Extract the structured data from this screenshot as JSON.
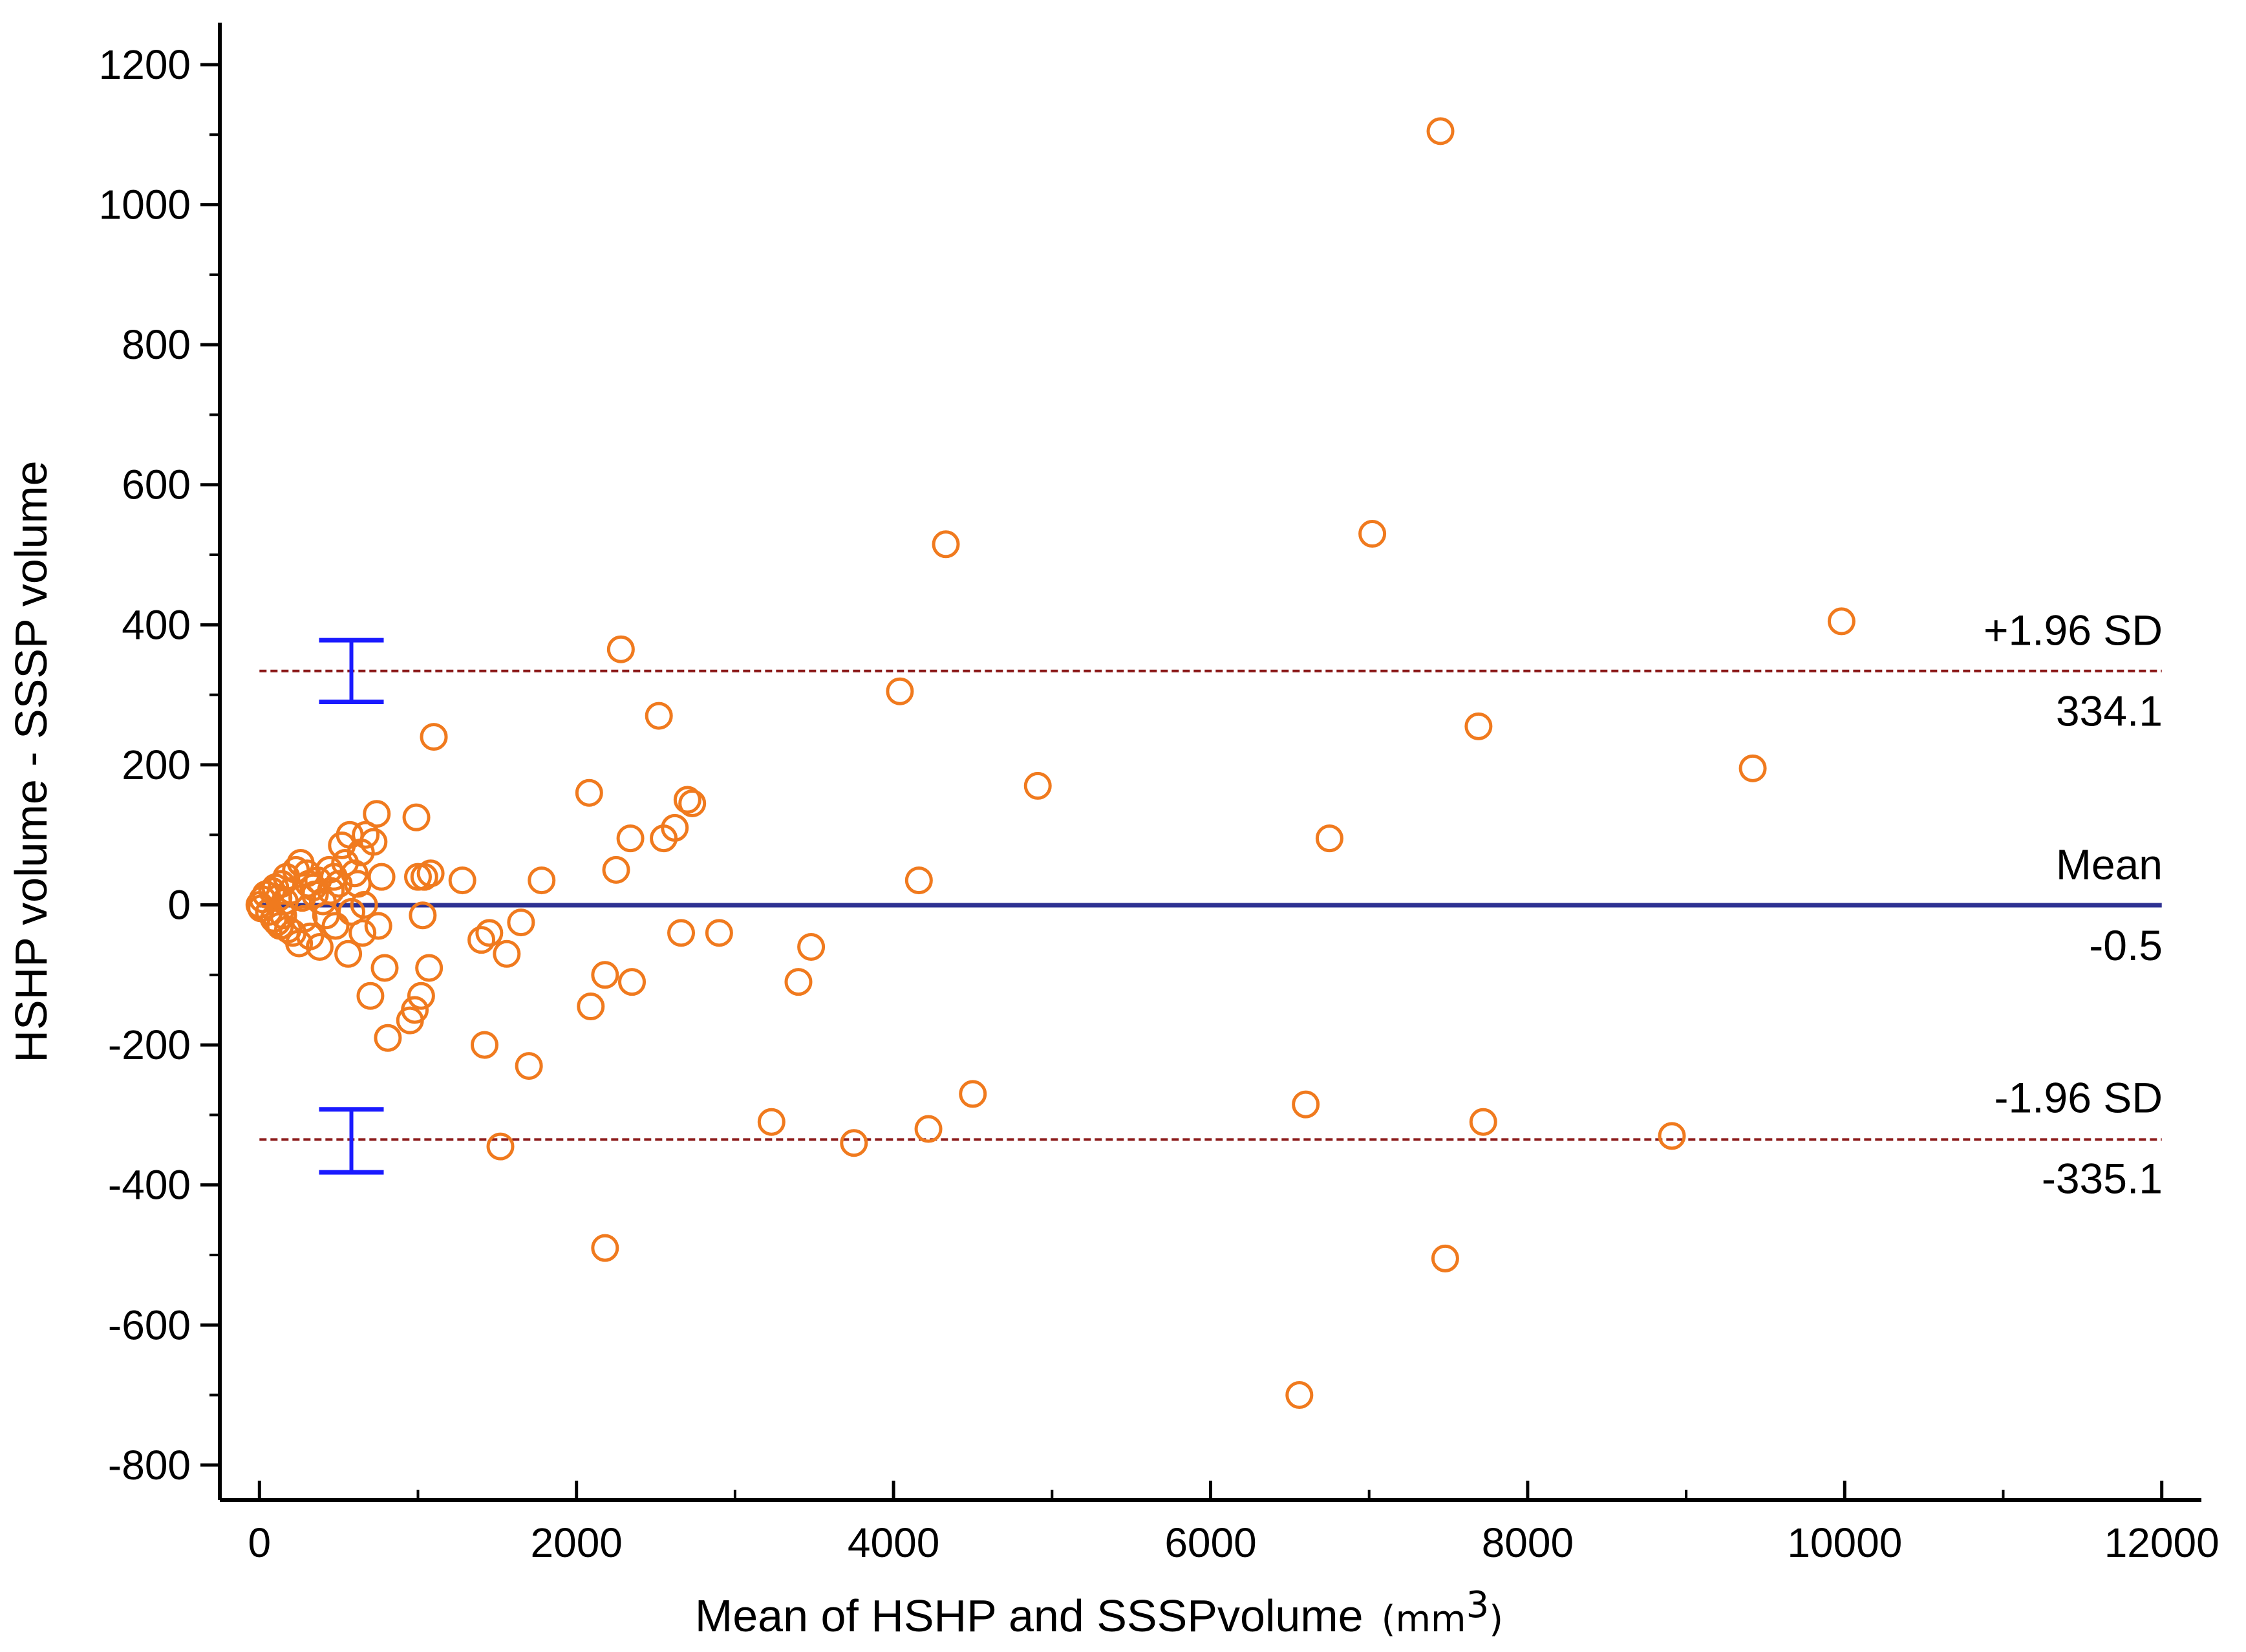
{
  "chart_data": {
    "type": "scatter",
    "title": "",
    "xlabel": "Mean of HSHP and SSSPvolume",
    "xlabel_unit": "mm",
    "xlabel_unit_sup": "3",
    "ylabel": "HSHP volume - SSSP volume",
    "xlim": [
      -250,
      12250
    ],
    "ylim": [
      -850,
      1260
    ],
    "xticks": [
      0,
      2000,
      4000,
      6000,
      8000,
      10000,
      12000
    ],
    "xtick_labels": [
      "0",
      "2000",
      "4000",
      "6000",
      "8000",
      "10000",
      "12000"
    ],
    "xminor": [
      1000,
      3000,
      5000,
      7000,
      9000,
      11000
    ],
    "yticks": [
      -800,
      -600,
      -400,
      -200,
      0,
      200,
      400,
      600,
      800,
      1000,
      1200
    ],
    "ytick_labels": [
      "-800",
      "-600",
      "-400",
      "-200",
      "0",
      "200",
      "400",
      "600",
      "800",
      "1000",
      "1200"
    ],
    "yminor": [
      -700,
      -500,
      -300,
      -100,
      100,
      300,
      500,
      700,
      900,
      1100
    ],
    "mean_line": {
      "value": -0.5,
      "label": "Mean",
      "value_label": "-0.5",
      "color": "#2e3192"
    },
    "upper_loa": {
      "value": 334.1,
      "label": "+1.96 SD",
      "value_label": "334.1",
      "color": "#8b1a1a"
    },
    "lower_loa": {
      "value": -335.1,
      "label": "-1.96 SD",
      "value_label": "-335.1",
      "color": "#8b1a1a"
    },
    "ci_bars": [
      {
        "x": 580,
        "low": 290,
        "high": 378
      },
      {
        "x": 580,
        "low": -382,
        "high": -292
      }
    ],
    "ci_color": "#1a1aff",
    "point_color": "#f07a1e",
    "points": [
      [
        0,
        0
      ],
      [
        10,
        -5
      ],
      [
        20,
        8
      ],
      [
        40,
        15
      ],
      [
        60,
        -10
      ],
      [
        80,
        20
      ],
      [
        90,
        -20
      ],
      [
        100,
        25
      ],
      [
        110,
        -25
      ],
      [
        120,
        10
      ],
      [
        130,
        -30
      ],
      [
        140,
        30
      ],
      [
        150,
        -15
      ],
      [
        160,
        5
      ],
      [
        170,
        40
      ],
      [
        180,
        -35
      ],
      [
        200,
        20
      ],
      [
        210,
        -40
      ],
      [
        230,
        50
      ],
      [
        250,
        -55
      ],
      [
        260,
        60
      ],
      [
        270,
        10
      ],
      [
        280,
        -20
      ],
      [
        300,
        45
      ],
      [
        310,
        30
      ],
      [
        320,
        -45
      ],
      [
        340,
        25
      ],
      [
        350,
        15
      ],
      [
        370,
        35
      ],
      [
        380,
        -60
      ],
      [
        400,
        5
      ],
      [
        420,
        -15
      ],
      [
        440,
        50
      ],
      [
        450,
        20
      ],
      [
        470,
        40
      ],
      [
        480,
        -30
      ],
      [
        500,
        30
      ],
      [
        520,
        85
      ],
      [
        540,
        60
      ],
      [
        560,
        -70
      ],
      [
        570,
        100
      ],
      [
        580,
        -10
      ],
      [
        600,
        45
      ],
      [
        620,
        30
      ],
      [
        640,
        75
      ],
      [
        650,
        -40
      ],
      [
        660,
        0
      ],
      [
        670,
        100
      ],
      [
        700,
        -130
      ],
      [
        720,
        90
      ],
      [
        740,
        130
      ],
      [
        750,
        -30
      ],
      [
        770,
        40
      ],
      [
        790,
        -90
      ],
      [
        810,
        -190
      ],
      [
        950,
        -165
      ],
      [
        980,
        -150
      ],
      [
        990,
        125
      ],
      [
        1000,
        40
      ],
      [
        1020,
        -130
      ],
      [
        1030,
        -15
      ],
      [
        1040,
        40
      ],
      [
        1070,
        -90
      ],
      [
        1080,
        45
      ],
      [
        1100,
        240
      ],
      [
        1280,
        35
      ],
      [
        1400,
        -50
      ],
      [
        1420,
        -200
      ],
      [
        1450,
        -40
      ],
      [
        1520,
        -345
      ],
      [
        1560,
        -70
      ],
      [
        1650,
        -25
      ],
      [
        1700,
        -230
      ],
      [
        1780,
        35
      ],
      [
        2080,
        160
      ],
      [
        2090,
        -145
      ],
      [
        2180,
        -100
      ],
      [
        2180,
        -490
      ],
      [
        2250,
        50
      ],
      [
        2280,
        365
      ],
      [
        2340,
        95
      ],
      [
        2350,
        -110
      ],
      [
        2520,
        270
      ],
      [
        2550,
        95
      ],
      [
        2620,
        110
      ],
      [
        2660,
        -40
      ],
      [
        2700,
        150
      ],
      [
        2730,
        145
      ],
      [
        2900,
        -40
      ],
      [
        3230,
        -310
      ],
      [
        3400,
        -110
      ],
      [
        3480,
        -60
      ],
      [
        3750,
        -340
      ],
      [
        4040,
        305
      ],
      [
        4160,
        35
      ],
      [
        4220,
        -320
      ],
      [
        4330,
        515
      ],
      [
        4500,
        -270
      ],
      [
        4910,
        170
      ],
      [
        6560,
        -700
      ],
      [
        6600,
        -285
      ],
      [
        6750,
        95
      ],
      [
        7020,
        530
      ],
      [
        7450,
        1105
      ],
      [
        7480,
        -505
      ],
      [
        7690,
        255
      ],
      [
        7720,
        -310
      ],
      [
        8910,
        -330
      ],
      [
        9420,
        195
      ],
      [
        9980,
        405
      ]
    ]
  }
}
